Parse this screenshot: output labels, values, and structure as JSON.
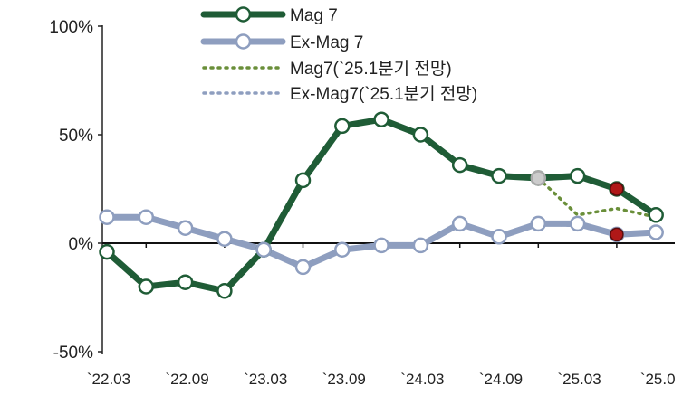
{
  "chart_data": {
    "type": "line",
    "title": "",
    "xlabel": "",
    "ylabel": "",
    "x_tick_labels": [
      "`22.03",
      "`22.09",
      "`23.03",
      "`23.09",
      "`24.03",
      "`24.09",
      "`25.03",
      "`25.0"
    ],
    "y_tick_labels": [
      "100%",
      "50%",
      "0%",
      "-50%"
    ],
    "ylim": [
      -50,
      100
    ],
    "x_count": 15,
    "legend_position": "top",
    "grid": false,
    "series": [
      {
        "name": "Mag 7",
        "style": "solid",
        "color": "#1f5c36",
        "marker": "circle",
        "values": [
          -4,
          -20,
          -18,
          -22,
          -3,
          29,
          54,
          57,
          50,
          36,
          31,
          30,
          31,
          25,
          13
        ]
      },
      {
        "name": "Ex-Mag 7",
        "style": "solid",
        "color": "#8e9ebf",
        "marker": "circle",
        "values": [
          12,
          12,
          7,
          2,
          -3,
          -11,
          -3,
          -1,
          -1,
          9,
          3,
          9,
          9,
          4,
          5
        ]
      },
      {
        "name": "Mag7(`25.1분기 전망)",
        "style": "dotted",
        "color": "#6a8f3a",
        "x_index": [
          11,
          12,
          13,
          14
        ],
        "values": [
          30,
          13,
          16,
          12
        ]
      },
      {
        "name": "Ex-Mag7(`25.1분기 전망)",
        "style": "dotted",
        "color": "#8e9ebf",
        "x_index": [
          11,
          12,
          13
        ],
        "values": [
          9,
          8,
          4
        ]
      }
    ],
    "highlight_points": [
      {
        "series": "Mag 7",
        "x_index": 13,
        "value": 25,
        "color": "#b01818"
      },
      {
        "series": "Ex-Mag 7",
        "x_index": 13,
        "value": 4,
        "color": "#b01818"
      },
      {
        "series": "Mag 7",
        "x_index": 11,
        "value": 30,
        "color": "#cccccc"
      }
    ]
  }
}
